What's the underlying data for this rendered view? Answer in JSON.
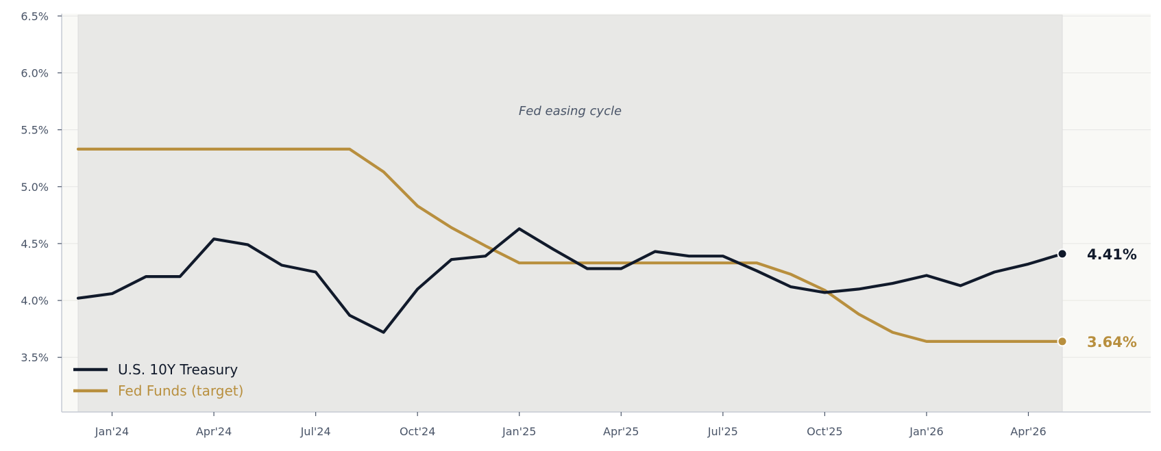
{
  "chart_data": {
    "type": "line",
    "x": [
      "2023-12",
      "2024-01",
      "2024-02",
      "2024-03",
      "2024-04",
      "2024-05",
      "2024-06",
      "2024-07",
      "2024-08",
      "2024-09",
      "2024-10",
      "2024-11",
      "2024-12",
      "2025-01",
      "2025-02",
      "2025-03",
      "2025-04",
      "2025-05",
      "2025-06",
      "2025-07",
      "2025-08",
      "2025-09",
      "2025-10",
      "2025-11",
      "2025-12",
      "2026-01",
      "2026-02",
      "2026-03",
      "2026-04",
      "2026-05"
    ],
    "series": [
      {
        "name": "U.S. 10Y Treasury",
        "color": "#111a2b",
        "values": [
          4.02,
          4.06,
          4.21,
          4.21,
          4.54,
          4.49,
          4.31,
          4.25,
          3.87,
          3.72,
          4.1,
          4.36,
          4.39,
          4.63,
          4.45,
          4.28,
          4.28,
          4.43,
          4.39,
          4.39,
          4.26,
          4.12,
          4.07,
          4.1,
          4.15,
          4.22,
          4.13,
          4.25,
          4.32,
          4.41
        ],
        "end_label": "4.41%"
      },
      {
        "name": "Fed Funds (target)",
        "color": "#b88f3e",
        "values": [
          5.33,
          5.33,
          5.33,
          5.33,
          5.33,
          5.33,
          5.33,
          5.33,
          5.33,
          5.13,
          4.83,
          4.64,
          4.48,
          4.33,
          4.33,
          4.33,
          4.33,
          4.33,
          4.33,
          4.33,
          4.33,
          4.23,
          4.09,
          3.88,
          3.72,
          3.64,
          3.64,
          3.64,
          3.64,
          3.64
        ],
        "end_label": "3.64%"
      }
    ],
    "ylim": [
      3.02,
      6.52
    ],
    "yticks": [
      {
        "value": 3.5,
        "label": "3.5%"
      },
      {
        "value": 4.0,
        "label": "4.0%"
      },
      {
        "value": 4.5,
        "label": "4.5%"
      },
      {
        "value": 5.0,
        "label": "5.0%"
      },
      {
        "value": 5.5,
        "label": "5.5%"
      },
      {
        "value": 6.0,
        "label": "6.0%"
      },
      {
        "value": 6.5,
        "label": "6.5%"
      }
    ],
    "xticks": [
      {
        "value": "2024-01",
        "label": "Jan'24"
      },
      {
        "value": "2024-04",
        "label": "Apr'24"
      },
      {
        "value": "2024-07",
        "label": "Jul'24"
      },
      {
        "value": "2024-10",
        "label": "Oct'24"
      },
      {
        "value": "2025-01",
        "label": "Jan'25"
      },
      {
        "value": "2025-04",
        "label": "Apr'25"
      },
      {
        "value": "2025-07",
        "label": "Jul'25"
      },
      {
        "value": "2025-10",
        "label": "Oct'25"
      },
      {
        "value": "2026-01",
        "label": "Jan'26"
      },
      {
        "value": "2026-04",
        "label": "Apr'26"
      }
    ],
    "shaded_region": {
      "start": "2023-12",
      "end": "2026-05",
      "label": "Fed easing cycle",
      "color": "#e8e8e6"
    },
    "annotation": "Fed easing cycle",
    "legend_position": "lower-left",
    "grid": "horizontal",
    "background_color": "#f9f9f6",
    "title": "",
    "xlabel": "",
    "ylabel": ""
  }
}
